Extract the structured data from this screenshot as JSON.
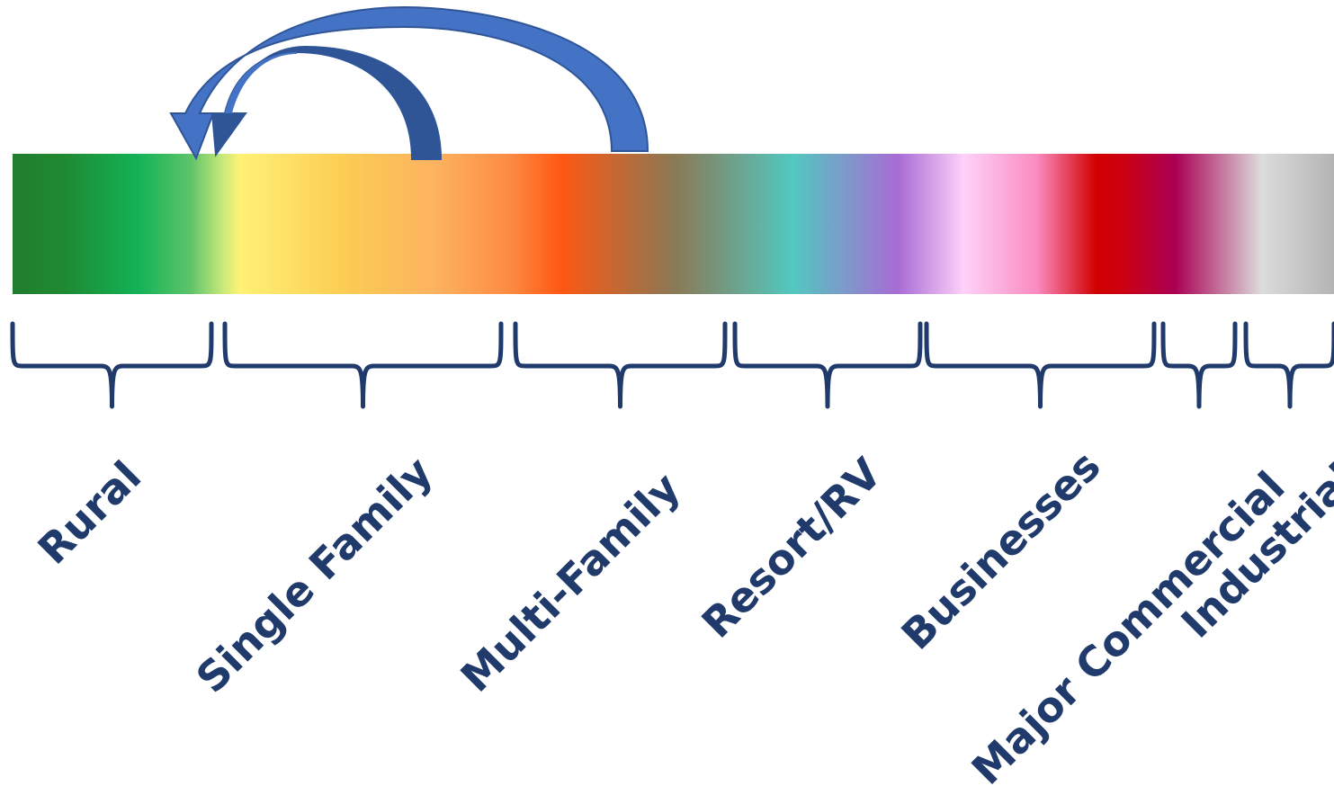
{
  "diagram": {
    "categories": [
      {
        "label": "Rural"
      },
      {
        "label": "Single Family"
      },
      {
        "label": "Multi-Family"
      },
      {
        "label": "Resort/RV"
      },
      {
        "label": "Businesses"
      },
      {
        "label": "Major Commercial"
      },
      {
        "label": "Industrial"
      }
    ],
    "colors": {
      "brace": "#1f3a6b",
      "label": "#1f3a6b",
      "arrow_fill": "#4472c4",
      "arrow_fill_dark": "#2f5597",
      "arrow_stroke": "#2f5597"
    },
    "spectrum_stops": [
      "#217d2d",
      "#13b257",
      "#ccea7a",
      "#fff176",
      "#fccd53",
      "#fda858",
      "#fe5813",
      "#8b7854",
      "#52c8c0",
      "#a86bd5",
      "#fed1f9",
      "#fb8bbf",
      "#d10000",
      "#aa0055",
      "#dcdcdc",
      "#b4b4b4"
    ]
  }
}
